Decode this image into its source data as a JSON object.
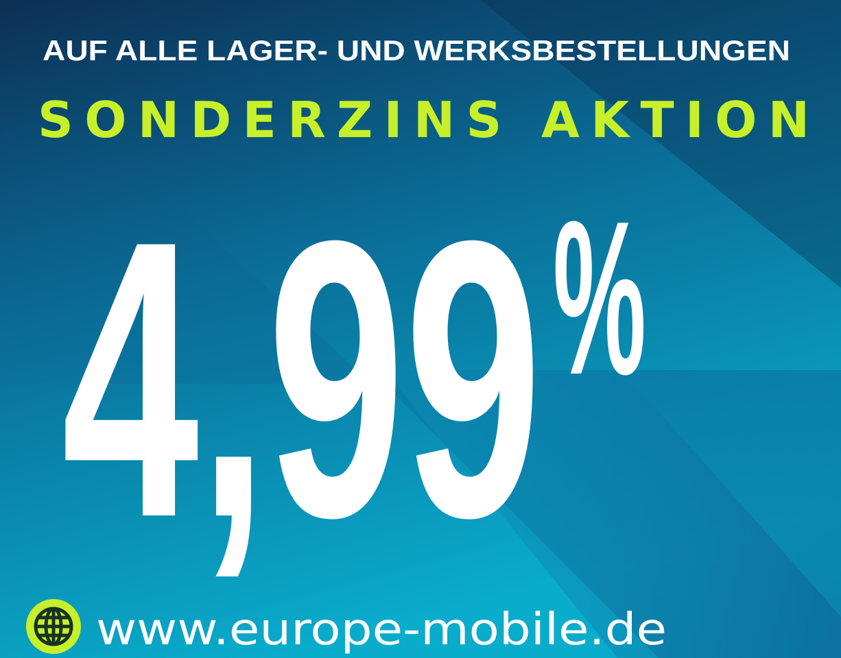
{
  "headline": "AUF ALLE LAGER- UND WERKSBESTELLUNGEN",
  "promo_title": "SONDERZINS AKTION",
  "rate": {
    "value": "4,99",
    "unit": "%"
  },
  "website": {
    "icon": "globe-icon",
    "url": "www.europe-mobile.de"
  },
  "colors": {
    "accent": "#c8f02a",
    "text": "#ffffff",
    "bg_dark": "#0c2f55",
    "bg_teal": "#0aa8c9"
  }
}
